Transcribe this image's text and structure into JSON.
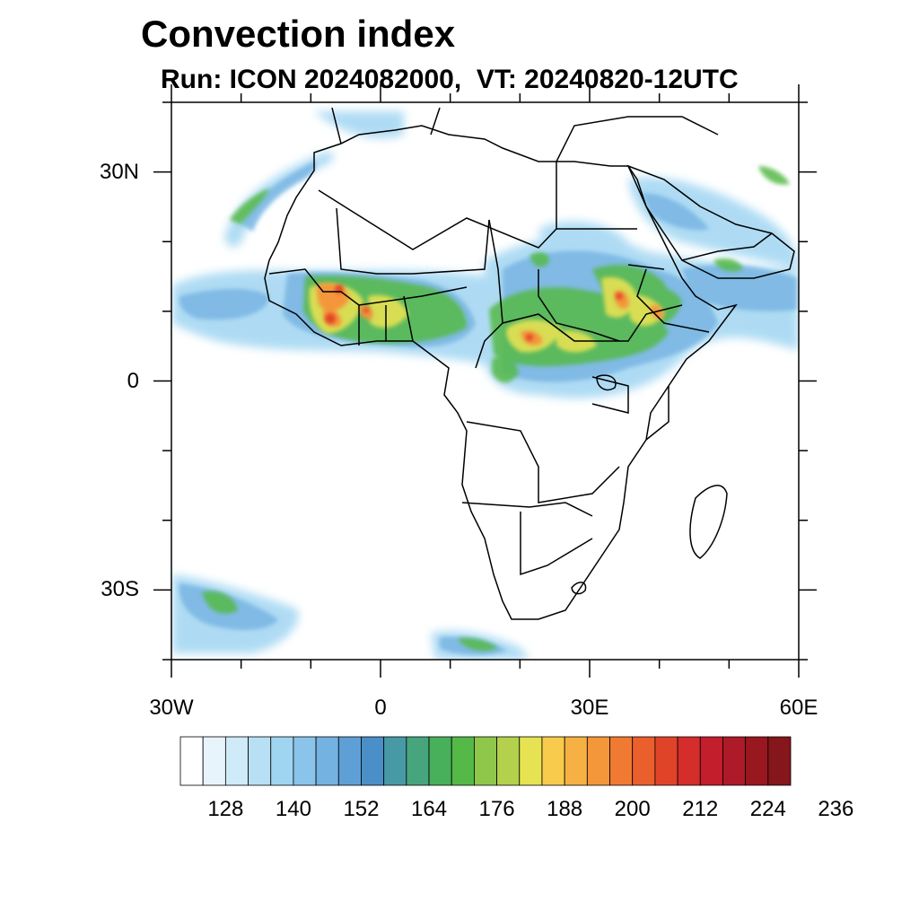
{
  "title": "Convection index",
  "subtitle": "Run: ICON 2024082000,  VT: 20240820-12UTC",
  "map": {
    "projection": "cylindrical",
    "lon_range": [
      -30,
      60
    ],
    "lat_range": [
      -40,
      40
    ],
    "lat_ticks": [
      {
        "value": 30,
        "label": "30N"
      },
      {
        "value": 0,
        "label": "0"
      },
      {
        "value": -30,
        "label": "30S"
      }
    ],
    "lon_ticks": [
      {
        "value": -30,
        "label": "30W"
      },
      {
        "value": 0,
        "label": "0"
      },
      {
        "value": 30,
        "label": "30E"
      },
      {
        "value": 60,
        "label": "60E"
      }
    ],
    "minor_tick_step_deg": 10
  },
  "colorbar": {
    "colors": [
      "#ffffff",
      "#e8f4fb",
      "#cfeaf8",
      "#b8e0f5",
      "#a0d5f2",
      "#8ac4ea",
      "#74b2e2",
      "#5e9fd6",
      "#4a8fc8",
      "#4899a6",
      "#47a57e",
      "#48af5a",
      "#54b946",
      "#8fc74a",
      "#b3d14d",
      "#e6e252",
      "#f8cb4d",
      "#f6b043",
      "#f4963a",
      "#f07a32",
      "#ea5f2c",
      "#e04428",
      "#d42d2b",
      "#c21e2c",
      "#ae1a27",
      "#991820",
      "#85161b"
    ],
    "labels": [
      "128",
      "140",
      "152",
      "164",
      "176",
      "188",
      "200",
      "212",
      "224",
      "236"
    ]
  }
}
